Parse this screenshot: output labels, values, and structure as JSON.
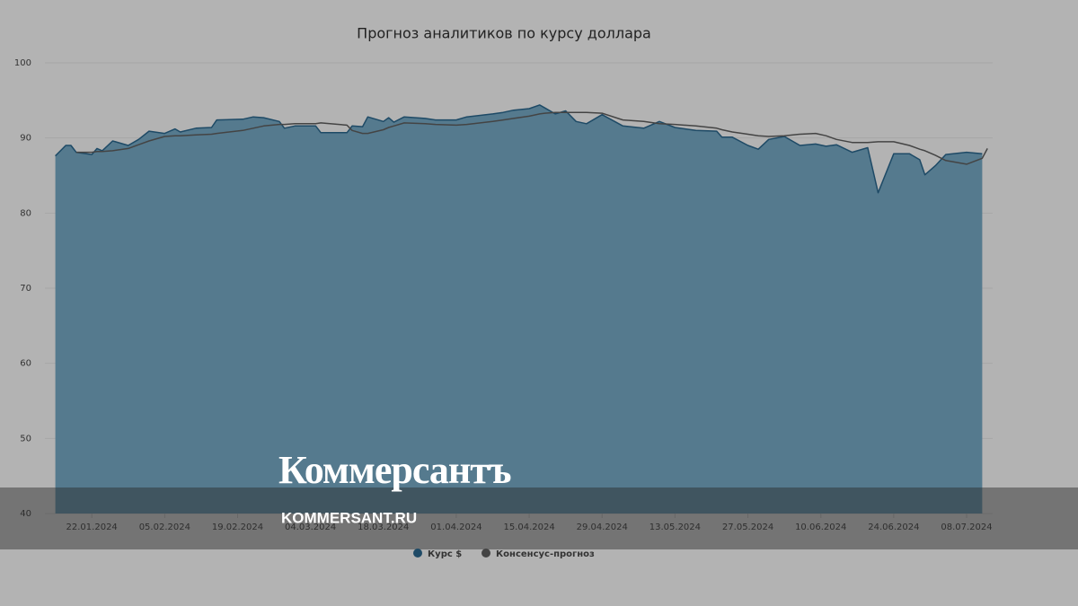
{
  "chart_data": {
    "type": "area-line",
    "title": "Прогноз аналитиков по курсу доллара",
    "x": [
      "15.01.2024",
      "17.01.2024",
      "18.01.2024",
      "19.01.2024",
      "22.01.2024",
      "23.01.2024",
      "24.01.2024",
      "26.01.2024",
      "29.01.2024",
      "31.01.2024",
      "02.02.2024",
      "05.02.2024",
      "07.02.2024",
      "08.02.2024",
      "11.02.2024",
      "14.02.2024",
      "15.02.2024",
      "20.02.2024",
      "22.02.2024",
      "24.02.2024",
      "27.02.2024",
      "28.02.2024",
      "01.03.2024",
      "05.03.2024",
      "06.03.2024",
      "11.03.2024",
      "12.03.2024",
      "14.03.2024",
      "15.03.2024",
      "18.03.2024",
      "19.03.2024",
      "20.03.2024",
      "22.03.2024",
      "26.03.2024",
      "28.03.2024",
      "01.04.2024",
      "03.04.2024",
      "08.04.2024",
      "10.04.2024",
      "12.04.2024",
      "15.04.2024",
      "17.04.2024",
      "18.04.2024",
      "20.04.2024",
      "22.04.2024",
      "24.04.2024",
      "26.04.2024",
      "29.04.2024",
      "03.05.2024",
      "07.05.2024",
      "10.05.2024",
      "13.05.2024",
      "17.05.2024",
      "21.05.2024",
      "22.05.2024",
      "24.05.2024",
      "27.05.2024",
      "29.05.2024",
      "31.05.2024",
      "03.06.2024",
      "06.06.2024",
      "09.06.2024",
      "11.06.2024",
      "13.06.2024",
      "16.06.2024",
      "19.06.2024",
      "21.06.2024",
      "24.06.2024",
      "27.06.2024",
      "29.06.2024",
      "30.06.2024",
      "02.07.2024",
      "04.07.2024",
      "08.07.2024",
      "11.07.2024",
      "12.07.2024"
    ],
    "series": [
      {
        "name": "Курс $",
        "kind": "area",
        "color": "#557a8e",
        "line_color": "#1e4a66",
        "values": [
          87.6,
          89.0,
          89.0,
          88.1,
          87.8,
          88.6,
          88.3,
          89.6,
          89.0,
          89.8,
          90.9,
          90.6,
          91.2,
          90.8,
          91.3,
          91.4,
          92.4,
          92.5,
          92.8,
          92.7,
          92.2,
          91.3,
          91.6,
          91.6,
          90.7,
          90.7,
          91.6,
          91.5,
          92.8,
          92.2,
          92.7,
          92.1,
          92.8,
          92.6,
          92.4,
          92.4,
          92.8,
          93.2,
          93.4,
          93.7,
          93.9,
          94.4,
          94.0,
          93.2,
          93.6,
          92.2,
          91.9,
          93.1,
          91.6,
          91.3,
          92.2,
          91.4,
          91.0,
          90.9,
          90.1,
          90.1,
          89.0,
          88.5,
          89.8,
          90.2,
          89.0,
          89.2,
          88.9,
          89.1,
          88.1,
          88.7,
          82.7,
          87.9,
          87.9,
          87.1,
          85.1,
          86.3,
          87.8,
          88.1,
          87.9,
          null
        ]
      },
      {
        "name": "Консенсус-прогноз",
        "kind": "line",
        "color": "#444444",
        "values": [
          null,
          null,
          null,
          88.1,
          88.1,
          88.2,
          88.2,
          88.3,
          88.6,
          89.1,
          89.6,
          90.2,
          90.3,
          90.3,
          90.4,
          90.5,
          90.6,
          91.0,
          91.3,
          91.6,
          91.8,
          91.8,
          91.9,
          91.9,
          92.0,
          91.7,
          91.0,
          90.6,
          90.6,
          91.1,
          91.4,
          91.6,
          92.0,
          91.9,
          91.8,
          91.7,
          91.8,
          92.2,
          92.4,
          92.6,
          92.9,
          93.2,
          93.3,
          93.4,
          93.4,
          93.4,
          93.4,
          93.3,
          92.4,
          92.2,
          91.9,
          91.8,
          91.6,
          91.3,
          91.1,
          90.8,
          90.5,
          90.3,
          90.2,
          90.3,
          90.5,
          90.6,
          90.3,
          89.8,
          89.4,
          89.4,
          89.5,
          89.5,
          89.0,
          88.5,
          88.3,
          87.7,
          87.0,
          86.5,
          87.3,
          88.6
        ]
      }
    ],
    "xlim": [
      "13.01.2024",
      "13.07.2024"
    ],
    "xticks": [
      "22.01.2024",
      "05.02.2024",
      "19.02.2024",
      "04.03.2024",
      "18.03.2024",
      "01.04.2024",
      "15.04.2024",
      "29.04.2024",
      "13.05.2024",
      "27.05.2024",
      "10.06.2024",
      "24.06.2024",
      "08.07.2024"
    ],
    "ylim": [
      40,
      100
    ],
    "yticks": [
      40,
      50,
      60,
      70,
      80,
      90,
      100
    ],
    "grid": true
  },
  "watermark": {
    "logo": "Коммерсантъ",
    "site": "KOMMERSANT.RU"
  }
}
